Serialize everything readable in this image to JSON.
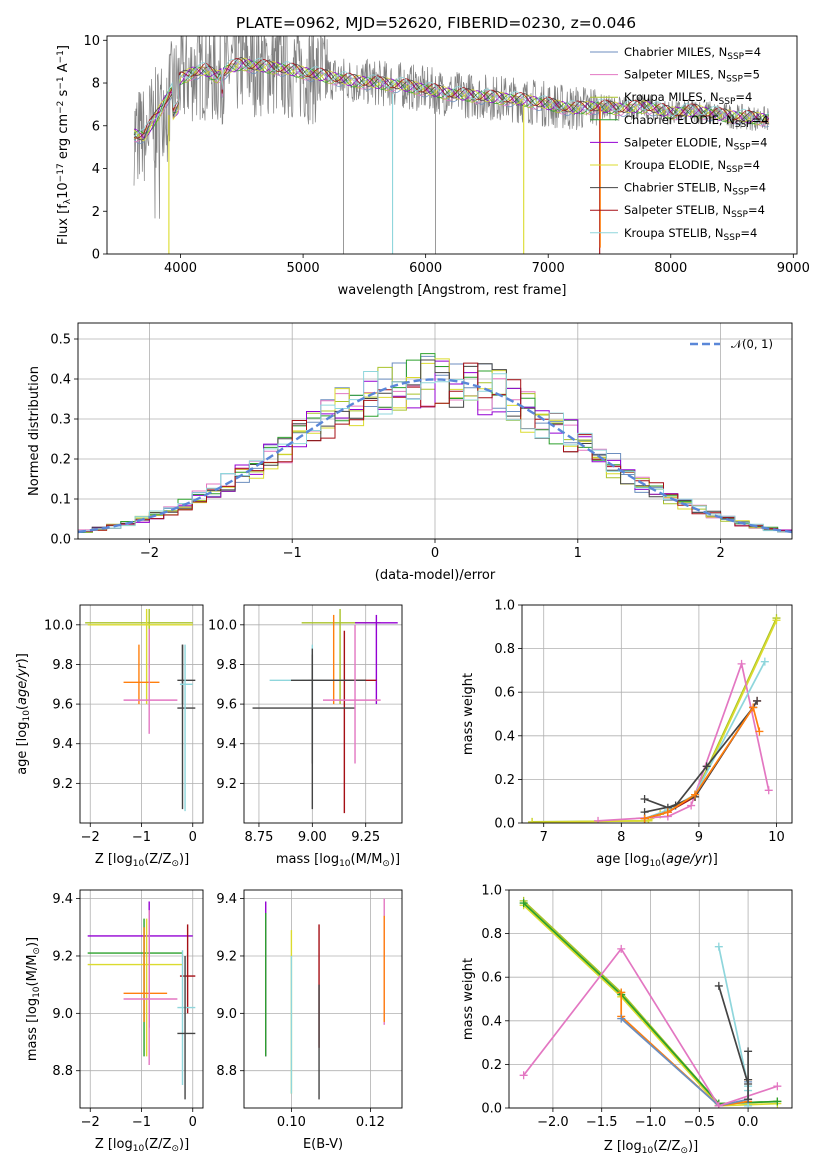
{
  "figure_title": "PLATE=0962, MJD=52620, FIBERID=0230, z=0.046",
  "colors": {
    "gray": "#808080",
    "blue": "#6c8ebf",
    "pink": "#e377c2",
    "yellowgreen": "#a9c32a",
    "green": "#2ca02c",
    "purple": "#9400d3",
    "yellow": "#dbdb2e",
    "black": "#444444",
    "darkred": "#a50f15",
    "cyan": "#8fd6dc",
    "orange": "#ff7f0e",
    "dashed": "#5a87d8"
  },
  "chart_data": [
    {
      "id": "spectrum",
      "type": "line",
      "title": "PLATE=0962, MJD=52620, FIBERID=0230, z=0.046",
      "xlabel": "wavelength [Angstrom, rest frame]",
      "ylabel": "Flux [f",
      "ylabel_parts": [
        "Flux [f",
        "λ",
        "10",
        "−17",
        " erg cm",
        "−2",
        " s",
        "−1",
        " A",
        "−1",
        "]"
      ],
      "xlim": [
        3400,
        9030
      ],
      "ylim": [
        0,
        10.2
      ],
      "xticks": [
        4000,
        5000,
        6000,
        7000,
        8000,
        9000
      ],
      "yticks": [
        0,
        2,
        4,
        6,
        8,
        10
      ],
      "continuum": [
        [
          3620,
          5.6
        ],
        [
          3700,
          5.5
        ],
        [
          3800,
          6.4
        ],
        [
          3900,
          7.4
        ],
        [
          4000,
          8.2
        ],
        [
          4100,
          8.5
        ],
        [
          4200,
          8.6
        ],
        [
          4300,
          8.3
        ],
        [
          4400,
          8.7
        ],
        [
          4500,
          8.9
        ],
        [
          4600,
          8.8
        ],
        [
          4800,
          8.7
        ],
        [
          5000,
          8.5
        ],
        [
          5200,
          8.3
        ],
        [
          5400,
          8.1
        ],
        [
          5600,
          8.0
        ],
        [
          5800,
          7.9
        ],
        [
          6000,
          7.7
        ],
        [
          6200,
          7.5
        ],
        [
          6400,
          7.4
        ],
        [
          6600,
          7.3
        ],
        [
          6800,
          7.2
        ],
        [
          7000,
          7.0
        ],
        [
          7200,
          6.8
        ],
        [
          7400,
          6.9
        ],
        [
          7600,
          6.8
        ],
        [
          7800,
          6.9
        ],
        [
          8000,
          6.6
        ],
        [
          8200,
          6.7
        ],
        [
          8400,
          6.5
        ],
        [
          8600,
          6.4
        ],
        [
          8800,
          6.3
        ]
      ],
      "legend": [
        {
          "label": "Chabrier MILES, N",
          "sub": "SSP",
          "eq": "=4",
          "color": "#6c8ebf"
        },
        {
          "label": "Salpeter MILES, N",
          "sub": "SSP",
          "eq": "=5",
          "color": "#e377c2"
        },
        {
          "label": "Kroupa MILES, N",
          "sub": "SSP",
          "eq": "=4",
          "color": "#a9c32a"
        },
        {
          "label": "Chabrier ELODIE, N",
          "sub": "SSP",
          "eq": "=4",
          "color": "#2ca02c"
        },
        {
          "label": "Salpeter ELODIE, N",
          "sub": "SSP",
          "eq": "=4",
          "color": "#9400d3"
        },
        {
          "label": "Kroupa ELODIE, N",
          "sub": "SSP",
          "eq": "=4",
          "color": "#dbdb2e"
        },
        {
          "label": "Chabrier STELIB, N",
          "sub": "SSP",
          "eq": "=4",
          "color": "#444444"
        },
        {
          "label": "Salpeter STELIB, N",
          "sub": "SSP",
          "eq": "=4",
          "color": "#a50f15"
        },
        {
          "label": "Kroupa STELIB, N",
          "sub": "SSP",
          "eq": "=4",
          "color": "#8fd6dc"
        }
      ],
      "grid": false,
      "legend_position": "right"
    },
    {
      "id": "residuals",
      "type": "step",
      "xlabel": "(data-model)/error",
      "ylabel": "Normed distribution",
      "xlim": [
        -2.5,
        2.5
      ],
      "ylim": [
        0,
        0.54
      ],
      "xticks": [
        -2,
        -1,
        0,
        1,
        2
      ],
      "yticks": [
        0.0,
        0.1,
        0.2,
        0.3,
        0.4,
        0.5
      ],
      "grid": true,
      "bin_width": 0.1,
      "gaussian_legend": "𝒩(0, 1)",
      "legend_position": "top-right"
    },
    {
      "id": "age_vs_Z",
      "type": "errorbar",
      "xlabel": "Z [log",
      "xlabel_sub": "10",
      "xlabel_rest": "(Z/Z",
      "xlabel_tail": ")]",
      "ylabel": "age  [log",
      "ylabel_sub": "10",
      "ylabel_rest": "(age/yr)]",
      "xlim": [
        -2.2,
        0.2
      ],
      "ylim": [
        9.0,
        10.1
      ],
      "xticks": [
        -2,
        -1,
        0
      ],
      "yticks": [
        9.2,
        9.4,
        9.6,
        9.8,
        10.0
      ],
      "grid": true,
      "points": [
        {
          "x": -0.85,
          "y": 10.01,
          "xe": [
            -2.1,
            0.0
          ],
          "ye": [
            9.78,
            10.08
          ],
          "color": "#a9c32a"
        },
        {
          "x": -0.9,
          "y": 10.0,
          "xe": [
            -2.05,
            0.0
          ],
          "ye": [
            9.6,
            10.08
          ],
          "color": "#dbdb2e"
        },
        {
          "x": -1.05,
          "y": 9.71,
          "xe": [
            -1.35,
            -0.65
          ],
          "ye": [
            9.6,
            9.9
          ],
          "color": "#ff7f0e"
        },
        {
          "x": -0.85,
          "y": 9.62,
          "xe": [
            -1.35,
            -0.3
          ],
          "ye": [
            9.45,
            9.98
          ],
          "color": "#e377c2"
        },
        {
          "x": -0.2,
          "y": 9.72,
          "xe": [
            -0.3,
            0.05
          ],
          "ye": [
            9.6,
            9.9
          ],
          "color": "#444444"
        },
        {
          "x": -0.2,
          "y": 9.58,
          "xe": [
            -0.3,
            0.05
          ],
          "ye": [
            9.07,
            9.9
          ],
          "color": "#444444"
        },
        {
          "x": -0.15,
          "y": 9.7,
          "xe": [
            -0.25,
            0.0
          ],
          "ye": [
            9.06,
            9.9
          ],
          "color": "#8fd6dc"
        }
      ]
    },
    {
      "id": "age_vs_mass",
      "type": "errorbar",
      "xlabel": "mass [log",
      "xlabel_sub": "10",
      "xlabel_rest": "(M/M",
      "xlabel_tail": ")]",
      "xlim": [
        8.68,
        9.42
      ],
      "ylim": [
        9.0,
        10.1
      ],
      "xticks": [
        8.75,
        9.0,
        9.25
      ],
      "yticks": [
        9.2,
        9.4,
        9.6,
        9.8,
        10.0
      ],
      "grid": true,
      "points": [
        {
          "x": 9.13,
          "y": 10.01,
          "xe": [
            8.95,
            9.32
          ],
          "ye": [
            9.6,
            10.08
          ],
          "color": "#a9c32a"
        },
        {
          "x": 9.3,
          "y": 10.01,
          "xe": [
            9.2,
            9.4
          ],
          "ye": [
            9.6,
            10.05
          ],
          "color": "#9400d3"
        },
        {
          "x": 9.1,
          "y": 9.72,
          "xe": [
            8.95,
            9.25
          ],
          "ye": [
            9.6,
            10.05
          ],
          "color": "#ff7f0e"
        },
        {
          "x": 9.15,
          "y": 9.72,
          "xe": [
            8.98,
            9.3
          ],
          "ye": [
            9.05,
            9.97
          ],
          "color": "#a50f15"
        },
        {
          "x": 9.0,
          "y": 9.72,
          "xe": [
            8.8,
            9.15
          ],
          "ye": [
            9.4,
            9.9
          ],
          "color": "#8fd6dc"
        },
        {
          "x": 9.0,
          "y": 9.72,
          "xe": [
            8.9,
            9.25
          ],
          "ye": [
            9.07,
            9.88
          ],
          "color": "#444444"
        },
        {
          "x": 9.0,
          "y": 9.58,
          "xe": [
            8.72,
            9.2
          ],
          "ye": [
            9.3,
            9.85
          ],
          "color": "#444444"
        },
        {
          "x": 9.2,
          "y": 9.62,
          "xe": [
            9.05,
            9.32
          ],
          "ye": [
            9.3,
            10.0
          ],
          "color": "#e377c2"
        }
      ]
    },
    {
      "id": "weight_vs_age",
      "type": "line",
      "xlabel": "age  [log",
      "xlabel_sub": "10",
      "xlabel_rest": "(age/yr)]",
      "ylabel": "mass weight",
      "xlim": [
        6.72,
        10.2
      ],
      "ylim": [
        0,
        1.0
      ],
      "xticks": [
        7,
        8,
        9,
        10
      ],
      "yticks": [
        0.0,
        0.2,
        0.4,
        0.6,
        0.8,
        1.0
      ],
      "grid": true,
      "series": [
        {
          "color": "#a9c32a",
          "x": [
            6.85,
            8.35,
            8.5,
            8.95,
            10.0
          ],
          "y": [
            0.005,
            0.01,
            0.04,
            0.13,
            0.94
          ]
        },
        {
          "color": "#dbdb2e",
          "x": [
            6.85,
            8.35,
            8.5,
            8.95,
            10.0
          ],
          "y": [
            0.003,
            0.01,
            0.04,
            0.12,
            0.93
          ]
        },
        {
          "color": "#e377c2",
          "x": [
            7.7,
            8.6,
            8.9,
            9.55,
            9.9
          ],
          "y": [
            0.01,
            0.03,
            0.08,
            0.73,
            0.15
          ]
        },
        {
          "color": "#8fd6dc",
          "x": [
            8.3,
            8.6,
            8.95,
            9.85
          ],
          "y": [
            0.02,
            0.06,
            0.13,
            0.74
          ]
        },
        {
          "color": "#a50f15",
          "x": [
            8.3,
            8.6,
            8.95,
            9.75
          ],
          "y": [
            0.02,
            0.05,
            0.12,
            0.56
          ]
        },
        {
          "color": "#444444",
          "x": [
            8.3,
            8.6,
            8.95,
            9.75
          ],
          "y": [
            0.11,
            0.07,
            0.12,
            0.56
          ]
        },
        {
          "color": "#444444",
          "x": [
            8.3,
            8.7,
            9.1,
            9.7
          ],
          "y": [
            0.05,
            0.08,
            0.26,
            0.53
          ]
        },
        {
          "color": "#ff7f0e",
          "x": [
            8.3,
            8.6,
            8.95,
            9.7,
            9.78
          ],
          "y": [
            0.02,
            0.05,
            0.13,
            0.53,
            0.42
          ]
        }
      ]
    },
    {
      "id": "mass_vs_Z",
      "type": "errorbar",
      "xlabel": "Z [log",
      "xlabel_sub": "10",
      "xlabel_rest": "(Z/Z",
      "xlabel_tail": ")]",
      "ylabel": "mass [log",
      "ylabel_sub": "10",
      "ylabel_rest": "(M/M",
      "ylabel_tail": ")]",
      "xlim": [
        -2.2,
        0.2
      ],
      "ylim": [
        8.67,
        9.43
      ],
      "xticks": [
        -2,
        -1,
        0
      ],
      "yticks": [
        8.8,
        9.0,
        9.2,
        9.4
      ],
      "grid": true,
      "points": [
        {
          "x": -0.85,
          "y": 9.27,
          "xe": [
            -2.05,
            0.0
          ],
          "ye": [
            8.95,
            9.39
          ],
          "color": "#9400d3"
        },
        {
          "x": -0.95,
          "y": 9.21,
          "xe": [
            -2.05,
            -0.2
          ],
          "ye": [
            8.85,
            9.33
          ],
          "color": "#2ca02c"
        },
        {
          "x": -0.9,
          "y": 9.17,
          "xe": [
            -2.05,
            -0.2
          ],
          "ye": [
            8.85,
            9.33
          ],
          "color": "#dbdb2e"
        },
        {
          "x": -0.1,
          "y": 9.13,
          "xe": [
            -0.25,
            0.05
          ],
          "ye": [
            9.0,
            9.31
          ],
          "color": "#a50f15"
        },
        {
          "x": -0.95,
          "y": 9.07,
          "xe": [
            -1.35,
            -0.5
          ],
          "ye": [
            8.97,
            9.3
          ],
          "color": "#ff7f0e"
        },
        {
          "x": -0.85,
          "y": 9.05,
          "xe": [
            -1.35,
            -0.3
          ],
          "ye": [
            8.82,
            9.36
          ],
          "color": "#e377c2"
        },
        {
          "x": -0.2,
          "y": 9.02,
          "xe": [
            -0.3,
            0.05
          ],
          "ye": [
            8.75,
            9.22
          ],
          "color": "#8fd6dc"
        },
        {
          "x": -0.15,
          "y": 8.93,
          "xe": [
            -0.3,
            0.05
          ],
          "ye": [
            8.7,
            9.2
          ],
          "color": "#444444"
        }
      ]
    },
    {
      "id": "mass_vs_EBV",
      "type": "errorbar",
      "xlabel": "E(B-V)",
      "xlim": [
        0.088,
        0.128
      ],
      "ylim": [
        8.67,
        9.43
      ],
      "xticks": [
        0.1,
        0.12
      ],
      "yticks": [
        8.8,
        9.0,
        9.2,
        9.4
      ],
      "grid": true,
      "points": [
        {
          "x": 0.0935,
          "y": 9.13,
          "ye": [
            8.85,
            9.39
          ],
          "color": "#9400d3"
        },
        {
          "x": 0.0935,
          "y": 9.17,
          "ye": [
            8.85,
            9.35
          ],
          "color": "#2ca02c"
        },
        {
          "x": 0.1,
          "y": 9.1,
          "ye": [
            8.72,
            9.29
          ],
          "color": "#dbdb2e"
        },
        {
          "x": 0.1,
          "y": 9.0,
          "ye": [
            8.72,
            9.2
          ],
          "color": "#8fd6dc"
        },
        {
          "x": 0.107,
          "y": 9.13,
          "ye": [
            8.88,
            9.31
          ],
          "color": "#a50f15"
        },
        {
          "x": 0.107,
          "y": 8.93,
          "ye": [
            8.7,
            9.1
          ],
          "color": "#444444"
        },
        {
          "x": 0.1235,
          "y": 9.13,
          "ye": [
            8.96,
            9.4
          ],
          "color": "#e377c2"
        },
        {
          "x": 0.1235,
          "y": 9.07,
          "ye": [
            8.97,
            9.34
          ],
          "color": "#ff7f0e"
        }
      ]
    },
    {
      "id": "weight_vs_Z",
      "type": "line",
      "xlabel": "Z [log",
      "xlabel_sub": "10",
      "xlabel_rest": "(Z/Z",
      "xlabel_tail": ")]",
      "ylabel": "mass weight",
      "xlim": [
        -2.45,
        0.45
      ],
      "ylim": [
        0,
        1.0
      ],
      "xticks": [
        -2.0,
        -1.5,
        -1.0,
        -0.5,
        0.0
      ],
      "xtick_labels": [
        "−2.0",
        "−1.5",
        "−1.0",
        "−0.5",
        "0.0"
      ],
      "yticks": [
        0.0,
        0.2,
        0.4,
        0.6,
        0.8,
        1.0
      ],
      "grid": true,
      "series": [
        {
          "color": "#a9c32a",
          "x": [
            -2.3,
            -1.3,
            -0.3,
            0.3
          ],
          "y": [
            0.95,
            0.53,
            0.02,
            0.03
          ]
        },
        {
          "color": "#dbdb2e",
          "x": [
            -2.3,
            -1.3,
            -0.3,
            0.3
          ],
          "y": [
            0.93,
            0.51,
            0.01,
            0.02
          ]
        },
        {
          "color": "#2ca02c",
          "x": [
            -2.3,
            -1.3,
            -0.3,
            0.3
          ],
          "y": [
            0.94,
            0.52,
            0.02,
            0.03
          ]
        },
        {
          "color": "#ff7f0e",
          "x": [
            -1.3,
            -1.3,
            -0.3,
            0.0,
            0.0
          ],
          "y": [
            0.53,
            0.42,
            0.01,
            0.03,
            0.13
          ]
        },
        {
          "color": "#6c8ebf",
          "x": [
            -1.3,
            -0.3,
            0.0,
            0.0
          ],
          "y": [
            0.41,
            0.01,
            0.04,
            0.12
          ]
        },
        {
          "color": "#e377c2",
          "x": [
            -2.3,
            -1.3,
            -0.3,
            0.3
          ],
          "y": [
            0.15,
            0.73,
            0.01,
            0.1
          ]
        },
        {
          "color": "#8fd6dc",
          "x": [
            -0.3,
            0.0,
            0.0,
            0.0
          ],
          "y": [
            0.74,
            0.1,
            0.08,
            0.01
          ]
        },
        {
          "color": "#444444",
          "x": [
            -0.3,
            0.0,
            0.0
          ],
          "y": [
            0.56,
            0.11,
            0.26
          ]
        },
        {
          "color": "#444444",
          "x": [
            0.0,
            0.0
          ],
          "y": [
            0.04,
            0.13
          ]
        }
      ]
    }
  ]
}
